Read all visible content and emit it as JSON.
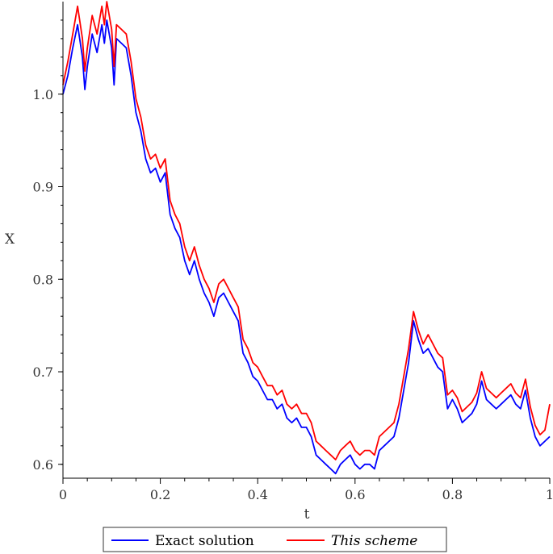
{
  "chart_data": {
    "type": "line",
    "title": "",
    "xlabel": "t",
    "ylabel": "X",
    "xlim": [
      0,
      1
    ],
    "ylim": [
      0.585,
      1.1
    ],
    "x_ticks": [
      0,
      0.2,
      0.4,
      0.6,
      0.8,
      1
    ],
    "x_tick_labels": [
      "0",
      "0.2",
      "0.4",
      "0.6",
      "0.8",
      "1"
    ],
    "y_ticks": [
      0.6,
      0.7,
      0.8,
      0.9,
      1.0
    ],
    "y_tick_labels": [
      "0.6",
      "0.7",
      "0.8",
      "0.9",
      "1.0"
    ],
    "grid": false,
    "legend_position": "bottom",
    "series": [
      {
        "name": "Exact solution",
        "color": "#0000ff",
        "style": "normal",
        "x": [
          0,
          0.01,
          0.02,
          0.03,
          0.04,
          0.045,
          0.05,
          0.06,
          0.07,
          0.075,
          0.08,
          0.085,
          0.09,
          0.1,
          0.105,
          0.11,
          0.12,
          0.13,
          0.14,
          0.15,
          0.16,
          0.17,
          0.18,
          0.19,
          0.2,
          0.21,
          0.22,
          0.23,
          0.24,
          0.25,
          0.26,
          0.27,
          0.28,
          0.29,
          0.3,
          0.31,
          0.32,
          0.33,
          0.34,
          0.35,
          0.36,
          0.37,
          0.38,
          0.39,
          0.4,
          0.41,
          0.42,
          0.43,
          0.44,
          0.45,
          0.46,
          0.47,
          0.48,
          0.49,
          0.5,
          0.51,
          0.52,
          0.53,
          0.54,
          0.55,
          0.56,
          0.57,
          0.58,
          0.59,
          0.6,
          0.61,
          0.62,
          0.63,
          0.64,
          0.65,
          0.66,
          0.67,
          0.68,
          0.69,
          0.7,
          0.71,
          0.72,
          0.73,
          0.74,
          0.75,
          0.76,
          0.77,
          0.78,
          0.79,
          0.8,
          0.81,
          0.82,
          0.83,
          0.84,
          0.85,
          0.86,
          0.87,
          0.88,
          0.89,
          0.9,
          0.91,
          0.92,
          0.93,
          0.94,
          0.95,
          0.96,
          0.97,
          0.98,
          0.99,
          1.0
        ],
        "y": [
          1.0,
          1.02,
          1.05,
          1.075,
          1.04,
          1.005,
          1.03,
          1.065,
          1.045,
          1.06,
          1.075,
          1.055,
          1.08,
          1.05,
          1.01,
          1.06,
          1.055,
          1.05,
          1.02,
          0.98,
          0.96,
          0.93,
          0.915,
          0.92,
          0.905,
          0.915,
          0.87,
          0.855,
          0.845,
          0.82,
          0.805,
          0.82,
          0.8,
          0.785,
          0.775,
          0.76,
          0.78,
          0.785,
          0.775,
          0.765,
          0.755,
          0.72,
          0.71,
          0.695,
          0.69,
          0.68,
          0.67,
          0.67,
          0.66,
          0.665,
          0.65,
          0.645,
          0.65,
          0.64,
          0.64,
          0.63,
          0.61,
          0.605,
          0.6,
          0.595,
          0.59,
          0.6,
          0.605,
          0.61,
          0.6,
          0.595,
          0.6,
          0.6,
          0.595,
          0.615,
          0.62,
          0.625,
          0.63,
          0.65,
          0.68,
          0.71,
          0.755,
          0.735,
          0.72,
          0.725,
          0.715,
          0.705,
          0.7,
          0.66,
          0.67,
          0.66,
          0.645,
          0.65,
          0.655,
          0.665,
          0.69,
          0.67,
          0.665,
          0.66,
          0.665,
          0.67,
          0.675,
          0.665,
          0.66,
          0.68,
          0.65,
          0.63,
          0.62,
          0.625,
          0.63
        ]
      },
      {
        "name": "This scheme",
        "color": "#ff0000",
        "style": "italic",
        "x": [
          0,
          0.01,
          0.02,
          0.03,
          0.04,
          0.045,
          0.05,
          0.06,
          0.07,
          0.075,
          0.08,
          0.085,
          0.09,
          0.1,
          0.105,
          0.11,
          0.12,
          0.13,
          0.14,
          0.15,
          0.16,
          0.17,
          0.18,
          0.19,
          0.2,
          0.21,
          0.22,
          0.23,
          0.24,
          0.25,
          0.26,
          0.27,
          0.28,
          0.29,
          0.3,
          0.31,
          0.32,
          0.33,
          0.34,
          0.35,
          0.36,
          0.37,
          0.38,
          0.39,
          0.4,
          0.41,
          0.42,
          0.43,
          0.44,
          0.45,
          0.46,
          0.47,
          0.48,
          0.49,
          0.5,
          0.51,
          0.52,
          0.53,
          0.54,
          0.55,
          0.56,
          0.57,
          0.58,
          0.59,
          0.6,
          0.61,
          0.62,
          0.63,
          0.64,
          0.65,
          0.66,
          0.67,
          0.68,
          0.69,
          0.7,
          0.71,
          0.72,
          0.73,
          0.74,
          0.75,
          0.76,
          0.77,
          0.78,
          0.79,
          0.8,
          0.81,
          0.82,
          0.83,
          0.84,
          0.85,
          0.86,
          0.87,
          0.88,
          0.89,
          0.9,
          0.91,
          0.92,
          0.93,
          0.94,
          0.95,
          0.96,
          0.97,
          0.98,
          0.99,
          1.0
        ],
        "y": [
          1.01,
          1.035,
          1.065,
          1.095,
          1.06,
          1.025,
          1.05,
          1.085,
          1.065,
          1.08,
          1.095,
          1.075,
          1.1,
          1.07,
          1.03,
          1.075,
          1.07,
          1.065,
          1.035,
          0.995,
          0.975,
          0.945,
          0.93,
          0.935,
          0.92,
          0.93,
          0.885,
          0.87,
          0.86,
          0.835,
          0.82,
          0.835,
          0.815,
          0.8,
          0.79,
          0.775,
          0.795,
          0.8,
          0.79,
          0.78,
          0.77,
          0.735,
          0.725,
          0.71,
          0.705,
          0.695,
          0.685,
          0.685,
          0.675,
          0.68,
          0.665,
          0.66,
          0.665,
          0.655,
          0.655,
          0.645,
          0.625,
          0.62,
          0.615,
          0.61,
          0.605,
          0.615,
          0.62,
          0.625,
          0.615,
          0.61,
          0.615,
          0.615,
          0.61,
          0.63,
          0.635,
          0.64,
          0.645,
          0.665,
          0.695,
          0.725,
          0.765,
          0.745,
          0.73,
          0.74,
          0.73,
          0.72,
          0.715,
          0.675,
          0.68,
          0.672,
          0.657,
          0.662,
          0.667,
          0.677,
          0.7,
          0.682,
          0.677,
          0.672,
          0.677,
          0.682,
          0.687,
          0.677,
          0.672,
          0.692,
          0.662,
          0.642,
          0.632,
          0.637,
          0.665
        ]
      }
    ]
  }
}
